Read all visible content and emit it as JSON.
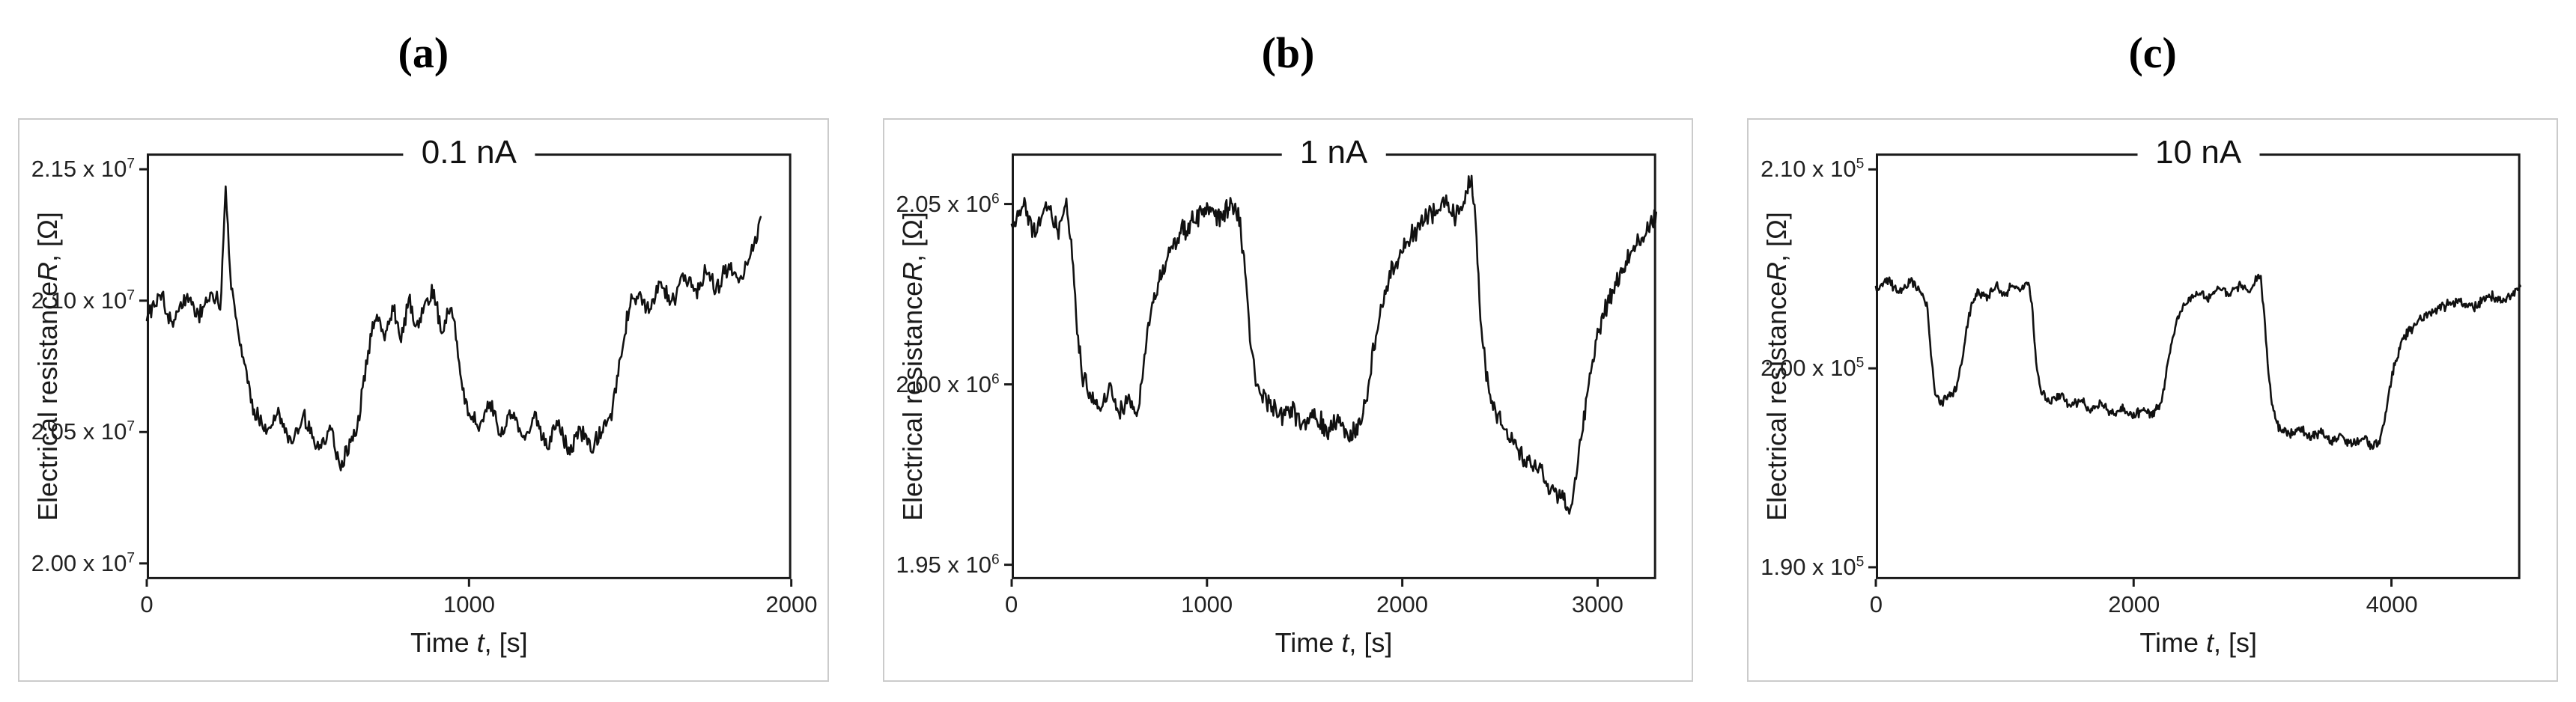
{
  "colors": {
    "frame_border": "#cbcbcb",
    "axis": "#1a1a1a",
    "trace": "#111111",
    "background": "#ffffff"
  },
  "chart_data": [
    {
      "type": "line",
      "panel_label": "(a)",
      "title": "0.1 nA",
      "xlabel": "Time t, [s]",
      "xlabel_prefix": "Time ",
      "xlabel_symbol": "t",
      "xlabel_suffix": ", [s]",
      "ylabel": "Electrical resistance R, [Ω]",
      "ylabel_prefix": "Electrical resistance ",
      "ylabel_symbol": "R",
      "ylabel_suffix": ", [Ω]",
      "unit_exponent": 7,
      "xlim": [
        0,
        2000
      ],
      "xticks": [
        0,
        1000,
        2000
      ],
      "ylim": [
        1.994,
        2.156
      ],
      "yticks": [
        {
          "value": 2.15,
          "label": "2.15 x 10",
          "exp": "7"
        },
        {
          "value": 2.1,
          "label": "2.10 x 10",
          "exp": "7"
        },
        {
          "value": 2.05,
          "label": "2.05 x 10",
          "exp": "7"
        },
        {
          "value": 2.0,
          "label": "2.00 x 10",
          "exp": "7"
        }
      ],
      "noise_amplitude": 0.0045,
      "samples": 560,
      "seed": 101,
      "baseline": [
        [
          0,
          2.093
        ],
        [
          40,
          2.104
        ],
        [
          80,
          2.091
        ],
        [
          120,
          2.102
        ],
        [
          160,
          2.094
        ],
        [
          200,
          2.103
        ],
        [
          230,
          2.098
        ],
        [
          245,
          2.142
        ],
        [
          258,
          2.112
        ],
        [
          275,
          2.096
        ],
        [
          300,
          2.077
        ],
        [
          330,
          2.058
        ],
        [
          370,
          2.051
        ],
        [
          410,
          2.057
        ],
        [
          450,
          2.046
        ],
        [
          490,
          2.055
        ],
        [
          530,
          2.044
        ],
        [
          570,
          2.052
        ],
        [
          600,
          2.037
        ],
        [
          630,
          2.046
        ],
        [
          655,
          2.053
        ],
        [
          675,
          2.07
        ],
        [
          695,
          2.088
        ],
        [
          715,
          2.094
        ],
        [
          740,
          2.086
        ],
        [
          765,
          2.098
        ],
        [
          790,
          2.087
        ],
        [
          815,
          2.1
        ],
        [
          840,
          2.09
        ],
        [
          865,
          2.099
        ],
        [
          890,
          2.105
        ],
        [
          915,
          2.088
        ],
        [
          940,
          2.097
        ],
        [
          960,
          2.088
        ],
        [
          975,
          2.068
        ],
        [
          995,
          2.059
        ],
        [
          1030,
          2.052
        ],
        [
          1065,
          2.06
        ],
        [
          1100,
          2.049
        ],
        [
          1135,
          2.058
        ],
        [
          1170,
          2.047
        ],
        [
          1205,
          2.056
        ],
        [
          1240,
          2.044
        ],
        [
          1275,
          2.053
        ],
        [
          1310,
          2.042
        ],
        [
          1345,
          2.051
        ],
        [
          1380,
          2.043
        ],
        [
          1415,
          2.052
        ],
        [
          1445,
          2.058
        ],
        [
          1470,
          2.077
        ],
        [
          1495,
          2.097
        ],
        [
          1525,
          2.104
        ],
        [
          1560,
          2.096
        ],
        [
          1595,
          2.107
        ],
        [
          1630,
          2.098
        ],
        [
          1665,
          2.11
        ],
        [
          1700,
          2.102
        ],
        [
          1735,
          2.112
        ],
        [
          1770,
          2.104
        ],
        [
          1805,
          2.114
        ],
        [
          1840,
          2.107
        ],
        [
          1870,
          2.117
        ],
        [
          1890,
          2.124
        ],
        [
          1905,
          2.133
        ]
      ]
    },
    {
      "type": "line",
      "panel_label": "(b)",
      "title": "1 nA",
      "xlabel": "Time t, [s]",
      "xlabel_prefix": "Time ",
      "xlabel_symbol": "t",
      "xlabel_suffix": ", [s]",
      "ylabel": "Electrical resistance R, [Ω]",
      "ylabel_prefix": "Electrical resistance ",
      "ylabel_symbol": "R",
      "ylabel_suffix": ", [Ω]",
      "unit_exponent": 6,
      "xlim": [
        0,
        3300
      ],
      "xticks": [
        0,
        1000,
        2000,
        3000
      ],
      "ylim": [
        1.946,
        2.064
      ],
      "yticks": [
        {
          "value": 2.05,
          "label": "2.05 x 10",
          "exp": "6"
        },
        {
          "value": 2.0,
          "label": "2.00 x 10",
          "exp": "6"
        },
        {
          "value": 1.95,
          "label": "1.95 x 10",
          "exp": "6"
        }
      ],
      "noise_amplitude": 0.0035,
      "samples": 660,
      "seed": 202,
      "baseline": [
        [
          0,
          2.044
        ],
        [
          60,
          2.05
        ],
        [
          120,
          2.041
        ],
        [
          180,
          2.049
        ],
        [
          240,
          2.043
        ],
        [
          280,
          2.051
        ],
        [
          305,
          2.04
        ],
        [
          330,
          2.018
        ],
        [
          360,
          2.002
        ],
        [
          400,
          1.997
        ],
        [
          450,
          1.993
        ],
        [
          500,
          1.998
        ],
        [
          550,
          1.992
        ],
        [
          600,
          1.996
        ],
        [
          640,
          1.992
        ],
        [
          665,
          2.001
        ],
        [
          690,
          2.012
        ],
        [
          720,
          2.022
        ],
        [
          760,
          2.03
        ],
        [
          810,
          2.037
        ],
        [
          870,
          2.042
        ],
        [
          940,
          2.046
        ],
        [
          1010,
          2.049
        ],
        [
          1070,
          2.046
        ],
        [
          1120,
          2.05
        ],
        [
          1165,
          2.046
        ],
        [
          1195,
          2.032
        ],
        [
          1225,
          2.01
        ],
        [
          1260,
          1.999
        ],
        [
          1310,
          1.995
        ],
        [
          1370,
          1.991
        ],
        [
          1430,
          1.994
        ],
        [
          1490,
          1.989
        ],
        [
          1550,
          1.992
        ],
        [
          1610,
          1.987
        ],
        [
          1670,
          1.99
        ],
        [
          1730,
          1.986
        ],
        [
          1790,
          1.989
        ],
        [
          1820,
          1.997
        ],
        [
          1855,
          2.01
        ],
        [
          1895,
          2.022
        ],
        [
          1945,
          2.031
        ],
        [
          2005,
          2.038
        ],
        [
          2070,
          2.043
        ],
        [
          2140,
          2.047
        ],
        [
          2210,
          2.05
        ],
        [
          2270,
          2.047
        ],
        [
          2320,
          2.051
        ],
        [
          2355,
          2.058
        ],
        [
          2375,
          2.044
        ],
        [
          2400,
          2.018
        ],
        [
          2430,
          2.002
        ],
        [
          2470,
          1.993
        ],
        [
          2520,
          1.988
        ],
        [
          2580,
          1.983
        ],
        [
          2640,
          1.979
        ],
        [
          2700,
          1.976
        ],
        [
          2760,
          1.972
        ],
        [
          2820,
          1.969
        ],
        [
          2855,
          1.963
        ],
        [
          2885,
          1.973
        ],
        [
          2920,
          1.987
        ],
        [
          2955,
          2.0
        ],
        [
          2995,
          2.012
        ],
        [
          3045,
          2.022
        ],
        [
          3105,
          2.03
        ],
        [
          3170,
          2.036
        ],
        [
          3235,
          2.041
        ],
        [
          3300,
          2.047
        ]
      ]
    },
    {
      "type": "line",
      "panel_label": "(c)",
      "title": "10 nA",
      "xlabel": "Time t, [s]",
      "xlabel_prefix": "Time ",
      "xlabel_symbol": "t",
      "xlabel_suffix": ", [s]",
      "ylabel": "Electrical resistance R, [Ω]",
      "ylabel_prefix": "Electrical resistance ",
      "ylabel_symbol": "R",
      "ylabel_suffix": ", [Ω]",
      "unit_exponent": 5,
      "xlim": [
        0,
        5000
      ],
      "xticks": [
        0,
        2000,
        4000
      ],
      "ylim": [
        1.894,
        2.108
      ],
      "yticks": [
        {
          "value": 2.1,
          "label": "2.10 x 10",
          "exp": "5"
        },
        {
          "value": 2.0,
          "label": "2.00 x 10",
          "exp": "5"
        },
        {
          "value": 1.9,
          "label": "1.90 x 10",
          "exp": "5"
        }
      ],
      "noise_amplitude": 0.0028,
      "samples": 760,
      "seed": 303,
      "baseline": [
        [
          0,
          2.039
        ],
        [
          90,
          2.045
        ],
        [
          180,
          2.037
        ],
        [
          270,
          2.044
        ],
        [
          350,
          2.039
        ],
        [
          400,
          2.03
        ],
        [
          430,
          2.005
        ],
        [
          460,
          1.988
        ],
        [
          500,
          1.982
        ],
        [
          560,
          1.985
        ],
        [
          620,
          1.989
        ],
        [
          660,
          2.0
        ],
        [
          700,
          2.018
        ],
        [
          740,
          2.032
        ],
        [
          790,
          2.039
        ],
        [
          860,
          2.035
        ],
        [
          930,
          2.042
        ],
        [
          1000,
          2.037
        ],
        [
          1070,
          2.043
        ],
        [
          1140,
          2.039
        ],
        [
          1185,
          2.044
        ],
        [
          1215,
          2.028
        ],
        [
          1245,
          2.002
        ],
        [
          1280,
          1.988
        ],
        [
          1350,
          1.983
        ],
        [
          1430,
          1.986
        ],
        [
          1510,
          1.981
        ],
        [
          1590,
          1.984
        ],
        [
          1670,
          1.979
        ],
        [
          1750,
          1.982
        ],
        [
          1830,
          1.977
        ],
        [
          1910,
          1.98
        ],
        [
          1990,
          1.976
        ],
        [
          2070,
          1.979
        ],
        [
          2150,
          1.977
        ],
        [
          2210,
          1.982
        ],
        [
          2255,
          1.998
        ],
        [
          2300,
          2.015
        ],
        [
          2350,
          2.027
        ],
        [
          2420,
          2.034
        ],
        [
          2500,
          2.038
        ],
        [
          2580,
          2.035
        ],
        [
          2660,
          2.041
        ],
        [
          2740,
          2.037
        ],
        [
          2820,
          2.042
        ],
        [
          2900,
          2.038
        ],
        [
          2955,
          2.045
        ],
        [
          2985,
          2.047
        ],
        [
          3015,
          2.025
        ],
        [
          3045,
          1.998
        ],
        [
          3080,
          1.978
        ],
        [
          3130,
          1.97
        ],
        [
          3210,
          1.967
        ],
        [
          3290,
          1.97
        ],
        [
          3370,
          1.965
        ],
        [
          3450,
          1.968
        ],
        [
          3530,
          1.963
        ],
        [
          3610,
          1.966
        ],
        [
          3690,
          1.962
        ],
        [
          3770,
          1.965
        ],
        [
          3850,
          1.961
        ],
        [
          3910,
          1.964
        ],
        [
          3950,
          1.975
        ],
        [
          3990,
          1.992
        ],
        [
          4040,
          2.006
        ],
        [
          4100,
          2.016
        ],
        [
          4180,
          2.022
        ],
        [
          4280,
          2.027
        ],
        [
          4400,
          2.031
        ],
        [
          4520,
          2.034
        ],
        [
          4640,
          2.031
        ],
        [
          4760,
          2.037
        ],
        [
          4880,
          2.034
        ],
        [
          5000,
          2.041
        ]
      ]
    }
  ]
}
